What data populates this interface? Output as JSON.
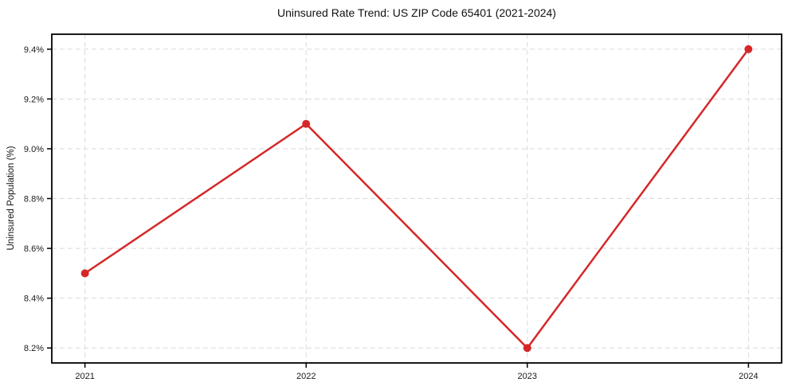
{
  "chart_data": {
    "type": "line",
    "title": "Uninsured Rate Trend: US ZIP Code 65401 (2021-2024)",
    "xlabel": "",
    "ylabel": "Uninsured Population (%)",
    "x": [
      2021,
      2022,
      2023,
      2024
    ],
    "series": [
      {
        "name": "Uninsured rate",
        "values": [
          8.5,
          9.1,
          8.2,
          9.4
        ]
      }
    ],
    "x_tick_labels": [
      "2021",
      "2022",
      "2023",
      "2024"
    ],
    "y_ticks": [
      8.2,
      8.4,
      8.6,
      8.8,
      9.0,
      9.2,
      9.4
    ],
    "y_tick_labels": [
      "8.2%",
      "8.4%",
      "8.6%",
      "8.8%",
      "9.0%",
      "9.2%",
      "9.4%"
    ],
    "xlim": [
      2020.85,
      2024.15
    ],
    "ylim": [
      8.14,
      9.46
    ],
    "grid": true,
    "grid_style": "dashed",
    "legend": "none",
    "colors": {
      "line": "#d62728",
      "marker": "#d62728",
      "grid": "#d9d9d9",
      "spine": "#000000",
      "tick_label": "#1a1a1a",
      "background": "#ffffff"
    }
  }
}
